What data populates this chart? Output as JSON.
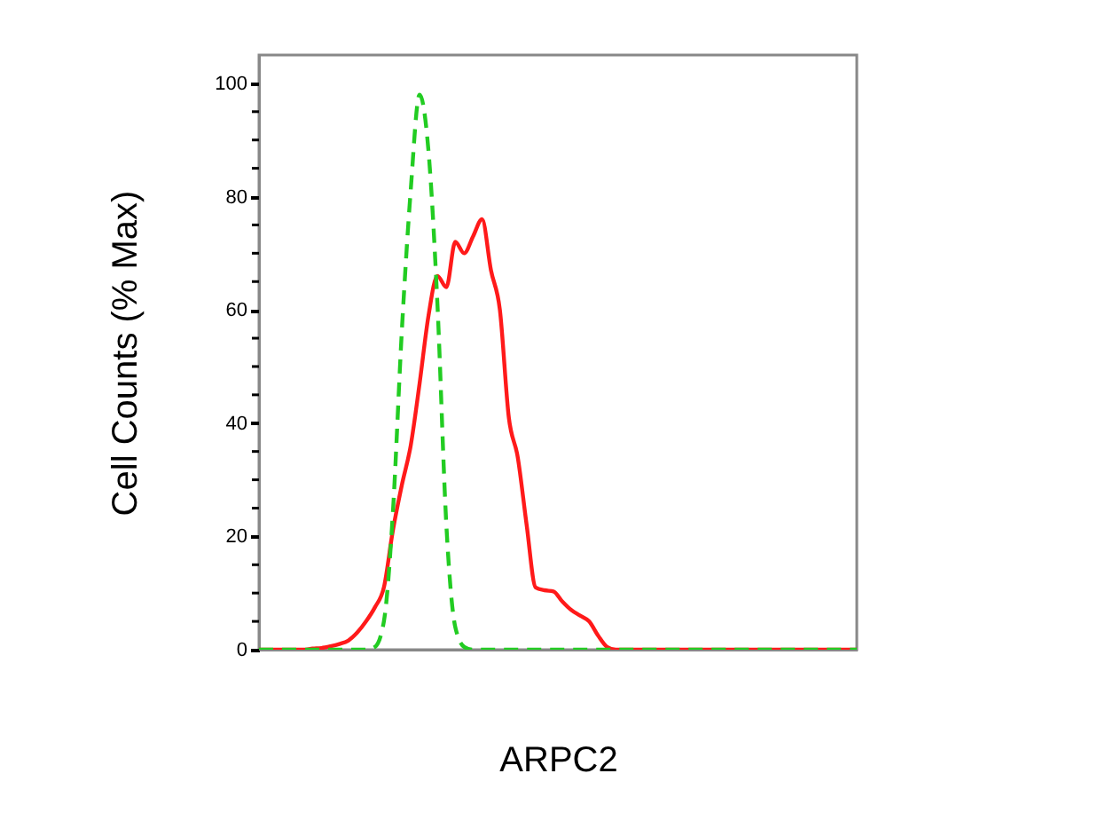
{
  "chart_data": {
    "type": "line",
    "xlabel": "ARPC2",
    "ylabel": "Cell Counts (% Max)",
    "categories": [
      null,
      null,
      null,
      null,
      null,
      null,
      null,
      null,
      null,
      null,
      null,
      null,
      null,
      null,
      null,
      null,
      null,
      null,
      null,
      null,
      null,
      null,
      null,
      null,
      null,
      null,
      null,
      null,
      null,
      null,
      null,
      null,
      null,
      null,
      null,
      null,
      null,
      null,
      null,
      null,
      null,
      null,
      null,
      null,
      null,
      null,
      null,
      null,
      null,
      null,
      null,
      null,
      null,
      null,
      null,
      null,
      null,
      null,
      null,
      null,
      null,
      null,
      null,
      null,
      null,
      null,
      null,
      null
    ],
    "series": [
      {
        "color": "#ff1a1a",
        "line_style": "solid",
        "values": [
          0,
          0,
          0,
          0,
          0,
          0,
          0.2,
          0.3,
          0.6,
          1,
          1.6,
          3,
          5,
          7.5,
          11,
          21,
          29,
          36,
          47,
          59,
          66,
          64,
          72,
          70,
          73,
          76,
          67,
          60,
          41,
          34,
          22,
          11,
          10.5,
          10.3,
          8.5,
          7,
          6,
          5,
          2.5,
          0.5,
          0,
          0,
          0,
          0,
          0,
          0,
          0,
          0,
          0,
          0,
          0,
          0,
          0,
          0,
          0,
          0,
          0,
          0,
          0,
          0,
          0,
          0,
          0,
          0,
          0,
          0,
          0,
          0
        ]
      },
      {
        "color": "#22cc22",
        "line_style": "dashed",
        "values": [
          0,
          0,
          0,
          0,
          0,
          0,
          0,
          0,
          0,
          0,
          0,
          0,
          0,
          0.5,
          5,
          24,
          56,
          81,
          98,
          88,
          61,
          22,
          4,
          0.5,
          0,
          0,
          0,
          0,
          0,
          0,
          0,
          0,
          0,
          0,
          0,
          0,
          0,
          0,
          0,
          0,
          0,
          0,
          0,
          0,
          0,
          0,
          0,
          0,
          0,
          0,
          0,
          0,
          0,
          0,
          0,
          0,
          0,
          0,
          0,
          0,
          0,
          0,
          0,
          0,
          0,
          0,
          0,
          0
        ]
      }
    ],
    "ylim": [
      0,
      105
    ],
    "yticks": [
      0,
      {
        "value": 5,
        "label": null
      },
      {
        "value": 10,
        "label": null
      },
      {
        "value": 15,
        "label": null
      },
      20,
      {
        "value": 25,
        "label": null
      },
      {
        "value": 30,
        "label": null
      },
      {
        "value": 35,
        "label": null
      },
      40,
      {
        "value": 45,
        "label": null
      },
      {
        "value": 50,
        "label": null
      },
      {
        "value": 55,
        "label": null
      },
      60,
      {
        "value": 65,
        "label": null
      },
      {
        "value": 70,
        "label": null
      },
      {
        "value": 75,
        "label": null
      },
      80,
      {
        "value": 85,
        "label": null
      },
      {
        "value": 90,
        "label": null
      },
      {
        "value": 95,
        "label": null
      },
      100
    ],
    "grid": false
  }
}
